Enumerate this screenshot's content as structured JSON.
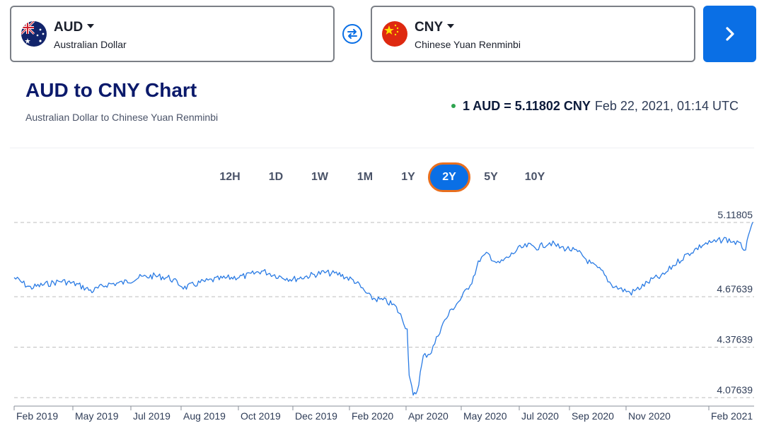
{
  "from": {
    "code": "AUD",
    "name": "Australian Dollar",
    "flag_icon": "australia-flag-icon"
  },
  "to": {
    "code": "CNY",
    "name": "Chinese Yuan Renminbi",
    "flag_icon": "china-flag-icon"
  },
  "header": {
    "title": "AUD to CNY Chart",
    "subtitle": "Australian Dollar to Chinese Yuan Renminbi",
    "rate": "1 AUD = 5.11802 CNY",
    "timestamp": "Feb 22, 2021, 01:14 UTC"
  },
  "periods": [
    "12H",
    "1D",
    "1W",
    "1M",
    "1Y",
    "2Y",
    "5Y",
    "10Y"
  ],
  "active_period": "2Y",
  "colors": {
    "accent": "#0a6fe5",
    "active_border": "#e96f1e",
    "line": "#2a7be4",
    "live_dot": "#2ea44f"
  },
  "chart_data": {
    "type": "line",
    "title": "",
    "xlabel": "",
    "ylabel": "",
    "grid": "horizontal dashed",
    "y_ticks": [
      5.11805,
      4.67639,
      4.37639,
      4.07639
    ],
    "ylim": [
      4.07639,
      5.11805
    ],
    "x_tick_labels": [
      "Feb 2019",
      "May 2019",
      "Jul 2019",
      "Aug 2019",
      "Oct 2019",
      "Dec 2019",
      "Feb 2020",
      "Apr 2020",
      "May 2020",
      "Jul 2020",
      "Sep 2020",
      "Nov 2020",
      "Feb 2021"
    ],
    "x_range": [
      "2019-02-22",
      "2021-02-22"
    ],
    "series": [
      {
        "x": [
          "2019-02-22",
          "2019-03-10",
          "2019-03-25",
          "2019-04-10",
          "2019-04-25",
          "2019-05-10",
          "2019-05-25",
          "2019-06-10",
          "2019-06-25",
          "2019-07-10",
          "2019-07-25",
          "2019-08-10",
          "2019-08-25",
          "2019-09-10",
          "2019-09-25",
          "2019-10-10",
          "2019-10-25",
          "2019-11-10",
          "2019-11-25",
          "2019-12-10",
          "2019-12-25",
          "2020-01-10",
          "2020-01-25",
          "2020-02-10",
          "2020-02-25",
          "2020-03-05",
          "2020-03-12",
          "2020-03-17",
          "2020-03-19",
          "2020-03-23",
          "2020-03-27",
          "2020-04-02",
          "2020-04-10",
          "2020-04-20",
          "2020-04-30",
          "2020-05-10",
          "2020-05-20",
          "2020-05-28",
          "2020-06-05",
          "2020-06-15",
          "2020-06-25",
          "2020-07-05",
          "2020-07-15",
          "2020-07-25",
          "2020-08-05",
          "2020-08-15",
          "2020-08-25",
          "2020-09-05",
          "2020-09-15",
          "2020-09-25",
          "2020-10-05",
          "2020-10-15",
          "2020-10-25",
          "2020-11-05",
          "2020-11-15",
          "2020-11-25",
          "2020-12-05",
          "2020-12-15",
          "2020-12-25",
          "2021-01-05",
          "2021-01-15",
          "2021-01-25",
          "2021-02-05",
          "2021-02-15",
          "2021-02-22"
        ],
        "y": [
          4.79,
          4.73,
          4.75,
          4.77,
          4.75,
          4.71,
          4.75,
          4.76,
          4.79,
          4.8,
          4.79,
          4.73,
          4.76,
          4.78,
          4.79,
          4.8,
          4.83,
          4.8,
          4.78,
          4.8,
          4.82,
          4.81,
          4.77,
          4.67,
          4.65,
          4.62,
          4.55,
          4.48,
          4.22,
          4.08,
          4.12,
          4.32,
          4.35,
          4.5,
          4.6,
          4.67,
          4.77,
          4.9,
          4.93,
          4.87,
          4.91,
          4.96,
          4.98,
          4.97,
          5.0,
          4.97,
          4.96,
          4.93,
          4.87,
          4.83,
          4.75,
          4.72,
          4.7,
          4.74,
          4.78,
          4.8,
          4.86,
          4.91,
          4.95,
          4.99,
          5.0,
          5.02,
          5.0,
          4.96,
          5.12
        ]
      }
    ]
  }
}
